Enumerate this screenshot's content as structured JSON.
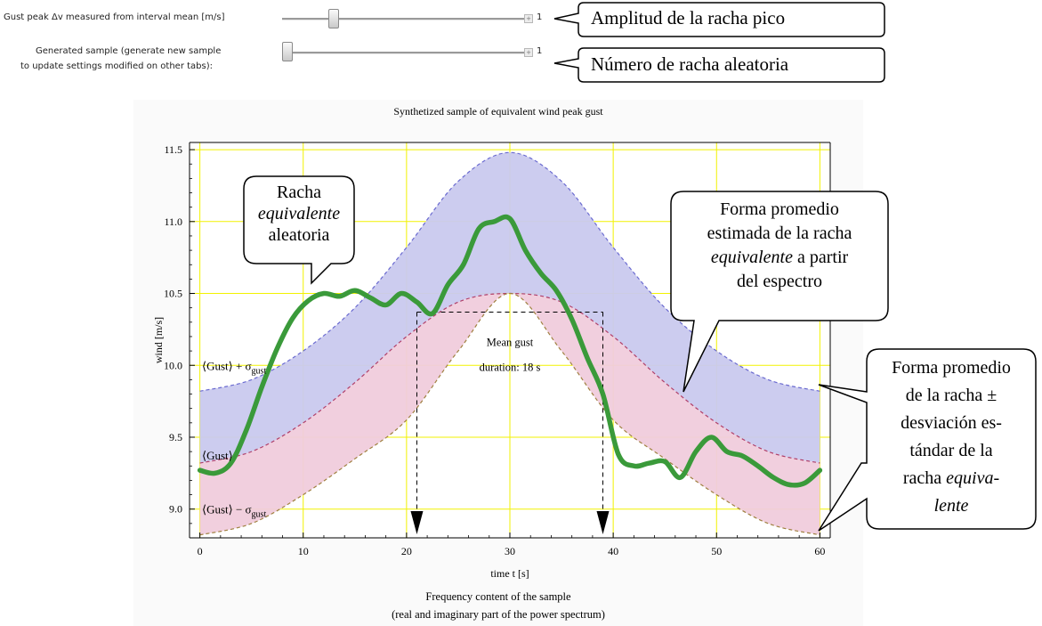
{
  "controls": {
    "slider1": {
      "label": "Gust peak Δv measured from interval mean  [m/s]",
      "value": "1",
      "position": 0.19
    },
    "slider2": {
      "label_line1": "Generated sample (generate new sample",
      "label_line2": "to update settings modified on other tabs):",
      "value": "1",
      "position": 0.0
    }
  },
  "callouts": {
    "amplitude": "Amplitud de la racha pico",
    "gust_number": "Número de racha aleatoria",
    "random_gust": {
      "l1": "Racha",
      "l2": "equivalente",
      "l3": "aleatoria"
    },
    "mean_shape": {
      "l1": "Forma promedio",
      "l2": "estimada de la racha",
      "l3_italic": "equivalente",
      "l3_rest": " a partir",
      "l4": "del espectro"
    },
    "band": {
      "l1": "Forma promedio",
      "l2": "de la racha ±",
      "l3": "desviación es-",
      "l4": "tándar de la",
      "l5_plain": "racha ",
      "l5_italic": "equiva-",
      "l6": "lente"
    }
  },
  "bottom": {
    "line1": "Frequency content of the sample",
    "line2": "(real and imaginary part of the power spectrum)"
  },
  "chart_data": {
    "type": "line",
    "title": "Synthetized sample of equivalent wind peak gust",
    "xlabel": "time t [s]",
    "ylabel": "wind [m/s]",
    "xlim": [
      -1,
      61
    ],
    "ylim": [
      8.8,
      11.55
    ],
    "xticks": [
      0,
      10,
      20,
      30,
      40,
      50,
      60
    ],
    "yticks": [
      9.0,
      9.5,
      10.0,
      10.5,
      11.0,
      11.5
    ],
    "ytick_labels": [
      "9.0",
      "9.5",
      "10.0",
      "10.5",
      "11.0",
      "11.5"
    ],
    "grid": true,
    "grid_color": "#f2f200",
    "band_upper_color": "#c9c9ee",
    "band_lower_color": "#f0ccdc",
    "sample_color": "#3a9a3a",
    "curve_labels": {
      "upper": "⟨Gust⟩ + σ",
      "mean": "⟨Gust⟩",
      "lower": "⟨Gust⟩ − σ",
      "subscript": "gust"
    },
    "annotation": {
      "line1": "Mean gust",
      "line2": "duration: 18 s",
      "t_start": 21,
      "t_end": 39,
      "y_level": 10.37
    },
    "series": [
      {
        "name": "Gust",
        "x": [
          0,
          5,
          10,
          15,
          20,
          25,
          30,
          35,
          40,
          45,
          50,
          55,
          60
        ],
        "values": [
          9.32,
          9.4,
          9.6,
          9.88,
          10.2,
          10.44,
          10.5,
          10.44,
          10.2,
          9.88,
          9.6,
          9.4,
          9.32
        ]
      },
      {
        "name": "Gust + σgust",
        "x": [
          0,
          5,
          10,
          15,
          20,
          25,
          30,
          35,
          40,
          45,
          50,
          55,
          60
        ],
        "values": [
          9.82,
          9.9,
          10.1,
          10.4,
          10.82,
          11.28,
          11.48,
          11.28,
          10.82,
          10.4,
          10.1,
          9.9,
          9.82
        ]
      },
      {
        "name": "Gust − σgust",
        "x": [
          0,
          5,
          10,
          15,
          20,
          25,
          30,
          35,
          40,
          45,
          50,
          55,
          60
        ],
        "values": [
          8.82,
          8.9,
          9.1,
          9.35,
          9.62,
          10.1,
          10.5,
          10.1,
          9.62,
          9.35,
          9.1,
          8.9,
          8.82
        ]
      },
      {
        "name": "Random sample",
        "x": [
          0,
          1.5,
          3,
          4.5,
          6,
          7.5,
          9,
          10.5,
          12,
          13.5,
          15,
          16.5,
          18,
          19.5,
          21,
          22.5,
          24,
          25.5,
          27,
          28.5,
          30,
          31.5,
          33,
          34.5,
          36,
          37.5,
          39,
          40.5,
          42,
          43.5,
          45,
          46.5,
          48,
          49.5,
          51,
          52.5,
          54,
          55.5,
          57,
          58.5,
          60
        ],
        "values": [
          9.27,
          9.25,
          9.32,
          9.55,
          9.85,
          10.12,
          10.33,
          10.45,
          10.5,
          10.48,
          10.52,
          10.47,
          10.42,
          10.5,
          10.44,
          10.36,
          10.56,
          10.7,
          10.95,
          11.0,
          11.02,
          10.8,
          10.64,
          10.52,
          10.32,
          10.05,
          9.8,
          9.38,
          9.3,
          9.32,
          9.33,
          9.22,
          9.4,
          9.5,
          9.4,
          9.37,
          9.3,
          9.22,
          9.17,
          9.18,
          9.27
        ]
      }
    ]
  }
}
